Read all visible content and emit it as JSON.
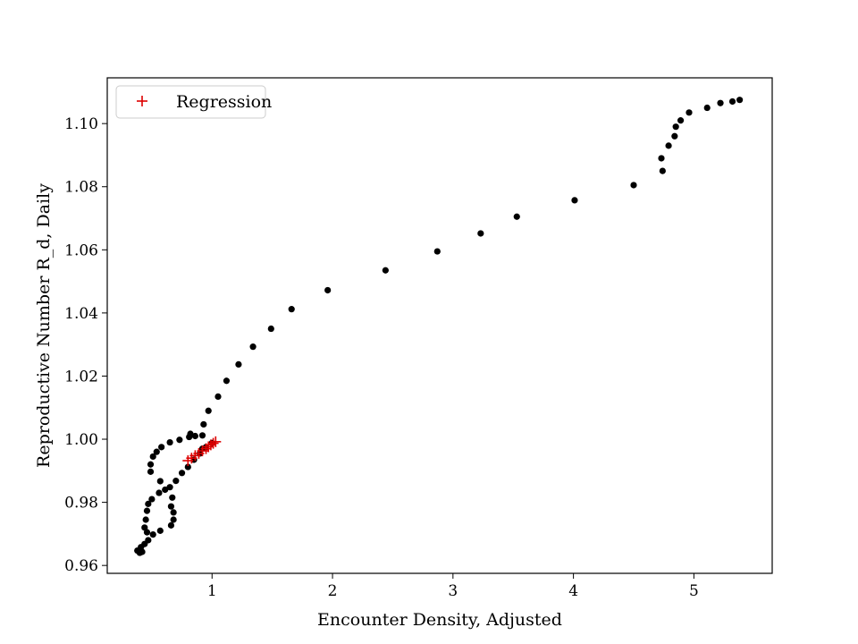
{
  "chart_data": {
    "type": "scatter",
    "xlabel": "Encounter Density, Adjusted",
    "ylabel": "Reproductive Number R_d, Daily",
    "xlim": [
      0.13,
      5.65
    ],
    "ylim": [
      0.9575,
      1.1145
    ],
    "x_ticks": [
      1,
      2,
      3,
      4,
      5
    ],
    "x_tick_labels": [
      "1",
      "2",
      "3",
      "4",
      "5"
    ],
    "y_ticks": [
      0.96,
      0.98,
      1.0,
      1.02,
      1.04,
      1.06,
      1.08,
      1.1
    ],
    "y_tick_labels": [
      "0.96",
      "0.98",
      "1.00",
      "1.02",
      "1.04",
      "1.06",
      "1.08",
      "1.10"
    ],
    "grid": false,
    "legend": {
      "position": "top-left",
      "entries": [
        {
          "label": "Regression",
          "marker": "+",
          "color": "#dd0000"
        }
      ]
    },
    "series": [
      {
        "marker": "dot",
        "color": "#000000",
        "points": [
          [
            5.38,
            1.1075
          ],
          [
            5.32,
            1.107
          ],
          [
            5.22,
            1.1065
          ],
          [
            5.11,
            1.105
          ],
          [
            4.96,
            1.1035
          ],
          [
            4.89,
            1.101
          ],
          [
            4.85,
            1.099
          ],
          [
            4.84,
            1.096
          ],
          [
            4.79,
            1.093
          ],
          [
            4.73,
            1.089
          ],
          [
            4.74,
            1.085
          ],
          [
            4.5,
            1.0805
          ],
          [
            4.01,
            1.0757
          ],
          [
            3.53,
            1.0705
          ],
          [
            3.23,
            1.0652
          ],
          [
            2.87,
            1.0595
          ],
          [
            2.44,
            1.0535
          ],
          [
            1.96,
            1.0472
          ],
          [
            1.66,
            1.0412
          ],
          [
            1.49,
            1.035
          ],
          [
            1.34,
            1.0293
          ],
          [
            1.22,
            1.0237
          ],
          [
            1.12,
            1.0185
          ],
          [
            1.05,
            1.0135
          ],
          [
            0.97,
            1.009
          ],
          [
            0.93,
            1.0047
          ],
          [
            0.92,
            1.0012
          ],
          [
            0.86,
            1.001
          ],
          [
            0.81,
            1.0007
          ],
          [
            0.82,
            1.0017
          ],
          [
            0.73,
            0.9998
          ],
          [
            0.65,
            0.999
          ],
          [
            0.58,
            0.9975
          ],
          [
            0.54,
            0.996
          ],
          [
            0.51,
            0.9945
          ],
          [
            0.49,
            0.992
          ],
          [
            0.49,
            0.9897
          ],
          [
            0.57,
            0.9867
          ],
          [
            0.56,
            0.983
          ],
          [
            0.61,
            0.984
          ],
          [
            0.65,
            0.9848
          ],
          [
            0.67,
            0.9815
          ],
          [
            0.66,
            0.9787
          ],
          [
            0.68,
            0.9768
          ],
          [
            0.68,
            0.9745
          ],
          [
            0.66,
            0.9727
          ],
          [
            0.57,
            0.971
          ],
          [
            0.51,
            0.9698
          ],
          [
            0.47,
            0.968
          ],
          [
            0.46,
            0.9705
          ],
          [
            0.44,
            0.972
          ],
          [
            0.45,
            0.9745
          ],
          [
            0.46,
            0.9773
          ],
          [
            0.47,
            0.9795
          ],
          [
            0.5,
            0.981
          ],
          [
            0.44,
            0.9668
          ],
          [
            0.41,
            0.9658
          ],
          [
            0.38,
            0.9647
          ],
          [
            0.4,
            0.964
          ],
          [
            0.42,
            0.9643
          ],
          [
            0.7,
            0.9868
          ],
          [
            0.75,
            0.9893
          ],
          [
            0.8,
            0.9912
          ],
          [
            0.85,
            0.9935
          ],
          [
            0.9,
            0.9955
          ],
          [
            0.92,
            0.997
          ],
          [
            0.95,
            0.9975
          ],
          [
            1.0,
            0.9988
          ]
        ]
      },
      {
        "name": "Regression",
        "marker": "+",
        "color": "#dd0000",
        "points": [
          [
            0.8,
            0.9932
          ],
          [
            0.83,
            0.994
          ],
          [
            0.86,
            0.9948
          ],
          [
            0.89,
            0.9955
          ],
          [
            0.92,
            0.9963
          ],
          [
            0.95,
            0.997
          ],
          [
            0.97,
            0.9976
          ],
          [
            0.99,
            0.9982
          ],
          [
            1.01,
            0.9987
          ],
          [
            1.03,
            0.9992
          ]
        ]
      }
    ]
  }
}
